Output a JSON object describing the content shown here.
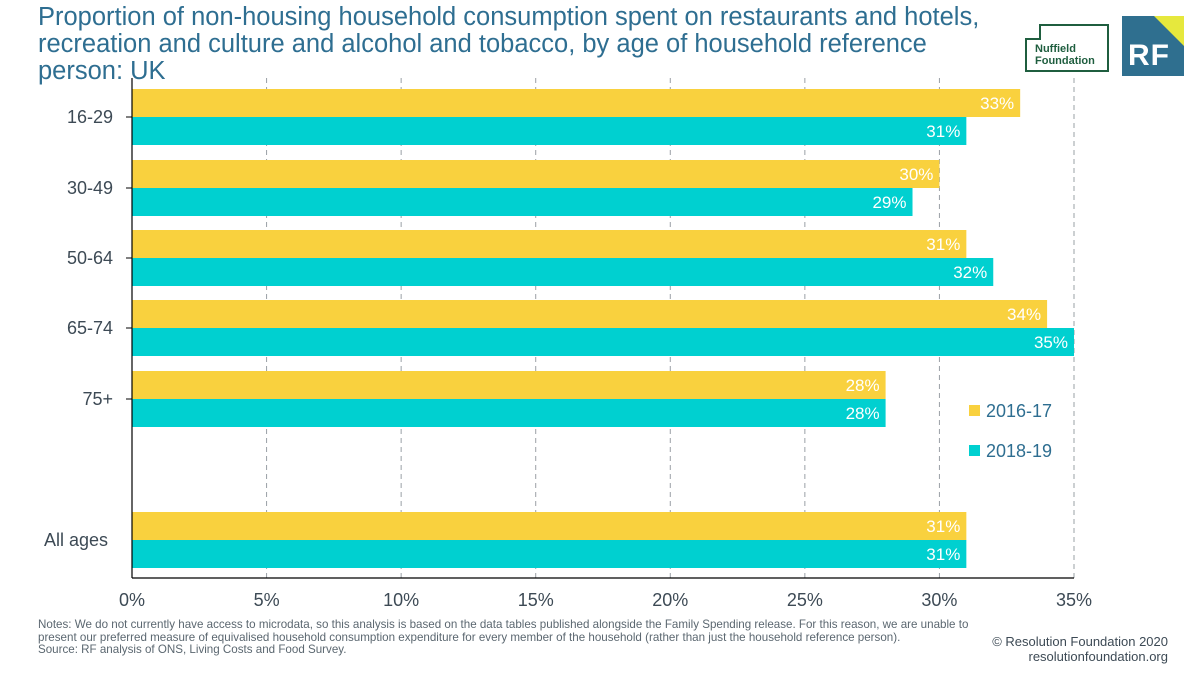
{
  "title": "Proportion of non-housing household consumption spent on restaurants and hotels, recreation and culture and alcohol and tobacco, by age of household reference person: UK",
  "logos": {
    "nuffield_line1": "Nuffield",
    "nuffield_line2": "Foundation",
    "rf": "RF"
  },
  "notes": {
    "text": "Notes: We do not currently have access to microdata, so this analysis is based on the data tables published alongside the Family Spending release. For this reason, we are unable to present our preferred measure of equivalised household consumption expenditure for every member of the household (rather than just the household reference person).",
    "source": "Source: RF analysis of ONS, Living Costs and Food Survey."
  },
  "copyright": {
    "line1": "© Resolution Foundation 2020",
    "line2": "resolutionfoundation.org"
  },
  "colors": {
    "series_2016": "#f9d13e",
    "series_2018": "#00d0d0",
    "title": "#2e6e91",
    "text": "#3d4a55"
  },
  "chart_data": {
    "type": "bar",
    "orientation": "horizontal",
    "categories": [
      "16-29",
      "30-49",
      "50-64",
      "65-74",
      "75+",
      "All ages"
    ],
    "series": [
      {
        "name": "2016-17",
        "values": [
          33,
          30,
          31,
          34,
          28,
          31
        ],
        "labels": [
          "33%",
          "30%",
          "31%",
          "34%",
          "28%",
          "31%"
        ]
      },
      {
        "name": "2018-19",
        "values": [
          31,
          29,
          32,
          35,
          28,
          31
        ],
        "labels": [
          "31%",
          "29%",
          "32%",
          "35%",
          "28%",
          "31%"
        ]
      }
    ],
    "xlim": [
      0,
      35
    ],
    "xticks": [
      0,
      5,
      10,
      15,
      20,
      25,
      30,
      35
    ],
    "xtick_labels": [
      "0%",
      "5%",
      "10%",
      "15%",
      "20%",
      "25%",
      "30%",
      "35%"
    ],
    "grid": "vertical dashed",
    "legend_position": "right"
  }
}
